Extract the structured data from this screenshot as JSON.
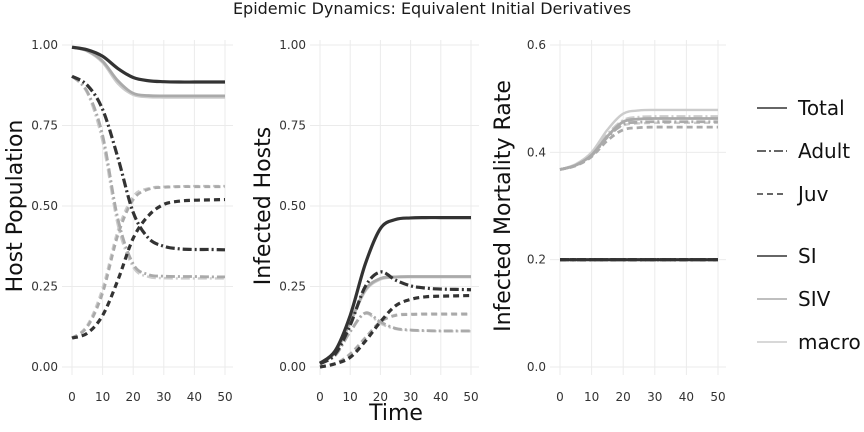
{
  "chart_data": {
    "type": "line",
    "title": "Epidemic Dynamics: Equivalent Initial Derivatives",
    "xlabel": "Time",
    "legend_linetype": [
      {
        "name": "Total",
        "dash": "solid"
      },
      {
        "name": "Adult",
        "dash": "dashdot"
      },
      {
        "name": "Juv",
        "dash": "dashed"
      }
    ],
    "legend_model": [
      {
        "name": "SI",
        "color": "#333333"
      },
      {
        "name": "SIV",
        "color": "#aaaaaa"
      },
      {
        "name": "macro",
        "color": "#cccccc"
      }
    ],
    "legend_placement": "right",
    "panels": [
      {
        "ylabel": "Host Population",
        "xlim": [
          0,
          50
        ],
        "ylim": [
          0,
          1
        ],
        "xticks": [
          "0",
          "10",
          "20",
          "30",
          "40",
          "50"
        ],
        "yticks": [
          "0.00",
          "0.25",
          "0.50",
          "0.75",
          "1.00"
        ],
        "x": [
          0,
          5,
          10,
          15,
          20,
          25,
          30,
          35,
          40,
          45,
          50
        ],
        "series": [
          {
            "model": "SI",
            "stage": "Total",
            "values": [
              0.993,
              0.985,
              0.965,
              0.927,
              0.899,
              0.889,
              0.886,
              0.885,
              0.885,
              0.885,
              0.885
            ]
          },
          {
            "model": "SIV",
            "stage": "Total",
            "values": [
              0.993,
              0.982,
              0.95,
              0.889,
              0.85,
              0.843,
              0.842,
              0.842,
              0.842,
              0.842,
              0.842
            ]
          },
          {
            "model": "macro",
            "stage": "Total",
            "values": [
              0.993,
              0.98,
              0.945,
              0.88,
              0.845,
              0.838,
              0.837,
              0.837,
              0.837,
              0.837,
              0.837
            ]
          },
          {
            "model": "SI",
            "stage": "Adult",
            "values": [
              0.903,
              0.875,
              0.8,
              0.65,
              0.48,
              0.4,
              0.375,
              0.367,
              0.365,
              0.365,
              0.364
            ]
          },
          {
            "model": "SIV",
            "stage": "Adult",
            "values": [
              0.903,
              0.855,
              0.72,
              0.46,
              0.32,
              0.287,
              0.282,
              0.281,
              0.281,
              0.28,
              0.28
            ]
          },
          {
            "model": "macro",
            "stage": "Adult",
            "values": [
              0.903,
              0.85,
              0.7,
              0.44,
              0.31,
              0.28,
              0.276,
              0.275,
              0.275,
              0.275,
              0.275
            ]
          },
          {
            "model": "SI",
            "stage": "Juv",
            "values": [
              0.09,
              0.105,
              0.16,
              0.27,
              0.4,
              0.47,
              0.505,
              0.515,
              0.518,
              0.519,
              0.52
            ]
          },
          {
            "model": "SIV",
            "stage": "Juv",
            "values": [
              0.09,
              0.125,
              0.23,
              0.41,
              0.52,
              0.552,
              0.558,
              0.56,
              0.56,
              0.56,
              0.56
            ]
          },
          {
            "model": "macro",
            "stage": "Juv",
            "values": [
              0.09,
              0.13,
              0.245,
              0.425,
              0.53,
              0.555,
              0.56,
              0.561,
              0.562,
              0.562,
              0.562
            ]
          }
        ]
      },
      {
        "ylabel": "Infected Hosts",
        "xlim": [
          0,
          50
        ],
        "ylim": [
          0,
          1
        ],
        "xticks": [
          "0",
          "10",
          "20",
          "30",
          "40",
          "50"
        ],
        "yticks": [
          "0.00",
          "0.25",
          "0.50",
          "0.75",
          "1.00"
        ],
        "x": [
          0,
          5,
          10,
          15,
          20,
          25,
          30,
          35,
          40,
          45,
          50
        ],
        "series": [
          {
            "model": "SI",
            "stage": "Total",
            "values": [
              0.012,
              0.05,
              0.16,
              0.32,
              0.43,
              0.458,
              0.463,
              0.464,
              0.464,
              0.464,
              0.464
            ]
          },
          {
            "model": "SIV",
            "stage": "Total",
            "values": [
              0.012,
              0.045,
              0.14,
              0.24,
              0.275,
              0.28,
              0.281,
              0.281,
              0.281,
              0.281,
              0.281
            ]
          },
          {
            "model": "macro",
            "stage": "Total",
            "values": [
              0.012,
              0.044,
              0.135,
              0.235,
              0.272,
              0.278,
              0.279,
              0.279,
              0.279,
              0.279,
              0.279
            ]
          },
          {
            "model": "SI",
            "stage": "Adult",
            "values": [
              0.01,
              0.04,
              0.13,
              0.25,
              0.295,
              0.27,
              0.252,
              0.245,
              0.242,
              0.241,
              0.24
            ]
          },
          {
            "model": "SIV",
            "stage": "Adult",
            "values": [
              0.01,
              0.035,
              0.11,
              0.168,
              0.14,
              0.12,
              0.115,
              0.113,
              0.112,
              0.112,
              0.112
            ]
          },
          {
            "model": "macro",
            "stage": "Adult",
            "values": [
              0.01,
              0.035,
              0.108,
              0.165,
              0.135,
              0.118,
              0.113,
              0.112,
              0.111,
              0.111,
              0.111
            ]
          },
          {
            "model": "SI",
            "stage": "Juv",
            "values": [
              0.0,
              0.01,
              0.03,
              0.08,
              0.14,
              0.19,
              0.21,
              0.218,
              0.22,
              0.221,
              0.222
            ]
          },
          {
            "model": "SIV",
            "stage": "Juv",
            "values": [
              0.0,
              0.01,
              0.04,
              0.09,
              0.14,
              0.16,
              0.163,
              0.164,
              0.164,
              0.164,
              0.164
            ]
          },
          {
            "model": "macro",
            "stage": "Juv",
            "values": [
              0.0,
              0.01,
              0.042,
              0.092,
              0.142,
              0.162,
              0.165,
              0.166,
              0.166,
              0.166,
              0.166
            ]
          }
        ]
      },
      {
        "ylabel": "Infected Mortality Rate",
        "xlim": [
          0,
          50
        ],
        "ylim": [
          0,
          0.6
        ],
        "xticks": [
          "0",
          "10",
          "20",
          "30",
          "40",
          "50"
        ],
        "yticks": [
          "0.0",
          "0.2",
          "0.4",
          "0.6"
        ],
        "x": [
          0,
          5,
          10,
          15,
          20,
          25,
          30,
          35,
          40,
          45,
          50
        ],
        "series": [
          {
            "model": "SI",
            "stage": "Total",
            "values": [
              0.2,
              0.2,
              0.2,
              0.2,
              0.2,
              0.2,
              0.2,
              0.2,
              0.2,
              0.2,
              0.2
            ]
          },
          {
            "model": "SI",
            "stage": "Adult",
            "values": [
              0.2,
              0.2,
              0.2,
              0.2,
              0.2,
              0.2,
              0.2,
              0.2,
              0.2,
              0.2,
              0.2
            ]
          },
          {
            "model": "SI",
            "stage": "Juv",
            "values": [
              0.2,
              0.2,
              0.2,
              0.2,
              0.2,
              0.2,
              0.2,
              0.2,
              0.2,
              0.2,
              0.2
            ]
          },
          {
            "model": "SIV",
            "stage": "Total",
            "values": [
              0.368,
              0.376,
              0.395,
              0.43,
              0.457,
              0.462,
              0.463,
              0.463,
              0.463,
              0.463,
              0.463
            ]
          },
          {
            "model": "macro",
            "stage": "Total",
            "values": [
              0.368,
              0.378,
              0.4,
              0.442,
              0.472,
              0.478,
              0.479,
              0.479,
              0.479,
              0.479,
              0.479
            ]
          },
          {
            "model": "SIV",
            "stage": "Adult",
            "values": [
              0.368,
              0.376,
              0.394,
              0.428,
              0.452,
              0.456,
              0.457,
              0.457,
              0.457,
              0.457,
              0.457
            ]
          },
          {
            "model": "macro",
            "stage": "Adult",
            "values": [
              0.368,
              0.377,
              0.397,
              0.434,
              0.46,
              0.466,
              0.467,
              0.467,
              0.467,
              0.467,
              0.467
            ]
          },
          {
            "model": "SIV",
            "stage": "Juv",
            "values": [
              0.368,
              0.375,
              0.392,
              0.422,
              0.442,
              0.446,
              0.447,
              0.447,
              0.447,
              0.447,
              0.447
            ]
          },
          {
            "model": "macro",
            "stage": "Juv",
            "values": [
              0.368,
              0.376,
              0.395,
              0.43,
              0.45,
              0.454,
              0.455,
              0.455,
              0.455,
              0.455,
              0.455
            ]
          }
        ]
      }
    ]
  }
}
